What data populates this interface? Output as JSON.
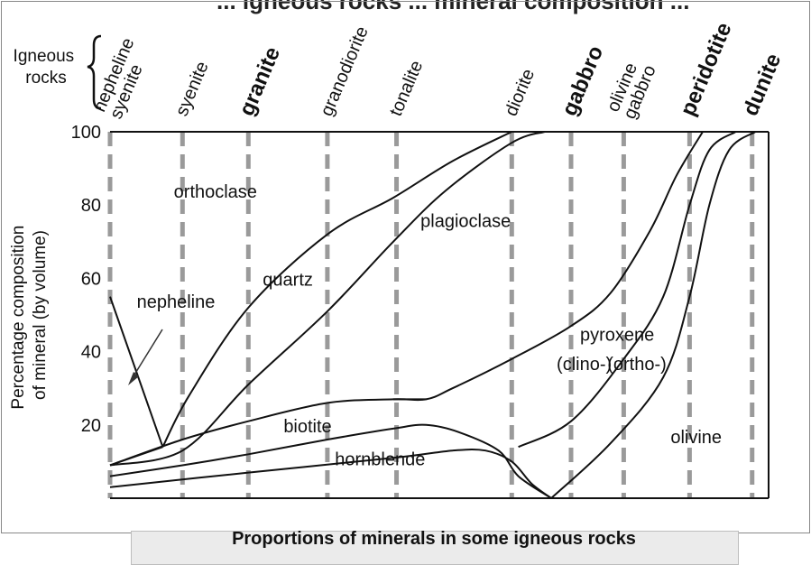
{
  "chart_data": {
    "type": "line",
    "title": "Proportions of minerals in some igneous rocks",
    "cut_off_heading": "... igneous rocks ... mineral composition ...",
    "group_label": "Igneous rocks",
    "ylabel": "Percentage composition of mineral (by volume)",
    "ylim": [
      0,
      100
    ],
    "y_ticks": [
      "20",
      "40",
      "60",
      "80",
      "100"
    ],
    "x_domain": [
      0,
      100
    ],
    "rocks": [
      {
        "name": "nepheline syenite",
        "x": 0,
        "bold": false
      },
      {
        "name": "syenite",
        "x": 11,
        "bold": false
      },
      {
        "name": "granite",
        "x": 21,
        "bold": true
      },
      {
        "name": "granodiorite",
        "x": 33,
        "bold": false
      },
      {
        "name": "tonalite",
        "x": 43.5,
        "bold": false
      },
      {
        "name": "diorite",
        "x": 61,
        "bold": false
      },
      {
        "name": "gabbro",
        "x": 70,
        "bold": true
      },
      {
        "name": "olivine gabbro",
        "x": 78,
        "bold": false
      },
      {
        "name": "peridotite",
        "x": 88,
        "bold": true
      },
      {
        "name": "dunite",
        "x": 97.5,
        "bold": true
      }
    ],
    "boundaries": [
      {
        "name": "nepheline upper",
        "points": [
          [
            0,
            55
          ],
          [
            8,
            14
          ]
        ]
      },
      {
        "name": "nepheline / orthoclase",
        "points": [
          [
            0,
            9
          ],
          [
            8,
            14
          ]
        ]
      },
      {
        "name": "orthoclase / quartz",
        "points": [
          [
            8,
            14
          ],
          [
            12,
            28
          ],
          [
            21,
            52
          ],
          [
            33,
            72
          ],
          [
            43,
            82
          ],
          [
            52,
            92
          ],
          [
            61,
            100
          ]
        ]
      },
      {
        "name": "quartz / plagioclase",
        "points": [
          [
            0,
            9
          ],
          [
            11,
            13
          ],
          [
            21,
            31
          ],
          [
            33,
            51
          ],
          [
            43,
            70
          ],
          [
            51,
            84
          ],
          [
            61,
            97
          ],
          [
            66,
            100
          ]
        ]
      },
      {
        "name": "plagioclase / pyroxene",
        "points": [
          [
            0,
            9
          ],
          [
            11,
            16
          ],
          [
            21,
            21
          ],
          [
            33,
            26
          ],
          [
            43,
            27
          ],
          [
            48,
            27
          ],
          [
            52,
            30
          ],
          [
            61,
            38
          ],
          [
            70,
            47
          ],
          [
            76,
            56
          ],
          [
            82,
            73
          ],
          [
            86,
            88
          ],
          [
            90,
            100
          ]
        ]
      },
      {
        "name": "biotite / hornblende",
        "points": [
          [
            0,
            6
          ],
          [
            11,
            9
          ],
          [
            21,
            12
          ],
          [
            33,
            16
          ],
          [
            43,
            19
          ],
          [
            48,
            20
          ],
          [
            53,
            18
          ],
          [
            59,
            13
          ],
          [
            62,
            6
          ],
          [
            67,
            0
          ]
        ]
      },
      {
        "name": "hornblende lower",
        "points": [
          [
            0,
            3
          ],
          [
            21,
            7
          ],
          [
            43,
            11
          ],
          [
            52,
            13
          ],
          [
            57,
            13
          ],
          [
            61,
            10
          ],
          [
            64,
            4
          ],
          [
            67,
            0
          ]
        ]
      },
      {
        "name": "biotite top",
        "points": [
          [
            43,
            27
          ],
          [
            48,
            27
          ]
        ]
      },
      {
        "name": "clino / ortho pyroxene",
        "points": [
          [
            62,
            14
          ],
          [
            70,
            21
          ],
          [
            78,
            38
          ],
          [
            84,
            55
          ],
          [
            88,
            80
          ],
          [
            91,
            95
          ],
          [
            95,
            100
          ]
        ]
      },
      {
        "name": "pyroxene / olivine",
        "points": [
          [
            67,
            0
          ],
          [
            76,
            15
          ],
          [
            84,
            33
          ],
          [
            88,
            55
          ],
          [
            91,
            80
          ],
          [
            94,
            95
          ],
          [
            98,
            100
          ]
        ]
      }
    ],
    "region_labels": [
      {
        "text": "orthoclase",
        "x": 16,
        "y": 82
      },
      {
        "text": "nepheline",
        "x": 10,
        "y": 52
      },
      {
        "text": "quartz",
        "x": 27,
        "y": 58
      },
      {
        "text": "plagioclase",
        "x": 54,
        "y": 74
      },
      {
        "text": "biotite",
        "x": 30,
        "y": 18
      },
      {
        "text": "hornblende",
        "x": 41,
        "y": 9
      },
      {
        "text": "pyroxene",
        "x": 77,
        "y": 43
      },
      {
        "text": "(clino-)",
        "x": 72,
        "y": 35
      },
      {
        "text": "(ortho-)",
        "x": 80,
        "y": 35
      },
      {
        "text": "olivine",
        "x": 89,
        "y": 15
      }
    ]
  }
}
